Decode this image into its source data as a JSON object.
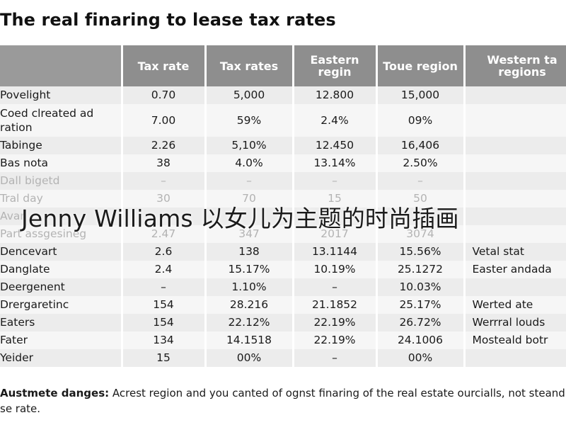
{
  "document": {
    "title": "The real finaring to lease tax rates",
    "overlay_text": "Jenny Williams 以女儿为主题的时尚插画",
    "footnote": {
      "label": "Austmete danges:",
      "text": " Acrest region and you canted of ognst finaring of the real estate ourcialls, not steand se rate."
    }
  },
  "table": {
    "headers": [
      "",
      "Tax rate",
      "Tax rates",
      "Eastern regin",
      "Toue region",
      "Western ta regions"
    ],
    "rows": [
      [
        "Povelight",
        "0.70",
        "5,000",
        "12.800",
        "15,000",
        ""
      ],
      [
        "Coed clreated ad ration",
        "7.00",
        "59%",
        "2.4%",
        "09%",
        ""
      ],
      [
        "Tabinge",
        "2.26",
        "5,10%",
        "12.450",
        "16,406",
        ""
      ],
      [
        "Bas nota",
        "38",
        "4.0%",
        "13.14%",
        "2.50%",
        ""
      ],
      [
        "Dall bigetd",
        "–",
        "–",
        "–",
        "–",
        ""
      ],
      [
        "Tral day",
        "30",
        "70",
        "15",
        "50",
        ""
      ],
      [
        "Avar",
        "",
        "",
        "",
        "",
        ""
      ],
      [
        "Part assgesineg",
        "2.47",
        "347",
        "2017",
        "3074",
        ""
      ],
      [
        "Dencevart",
        "2.6",
        "138",
        "13.1144",
        "15.56%",
        "Vetal stat"
      ],
      [
        "Danglate",
        "2.4",
        "15.17%",
        "10.19%",
        "25.1272",
        "Easter andada"
      ],
      [
        "Deergenent",
        "–",
        "1.10%",
        "–",
        "10.03%",
        ""
      ],
      [
        "Drergaretinc",
        "154",
        "28.216",
        "21.1852",
        "25.17%",
        "Werted ate"
      ],
      [
        "Eaters",
        "154",
        "22.12%",
        "22.19%",
        "26.72%",
        "Werrral louds"
      ],
      [
        "Fater",
        "134",
        "14.1518",
        "22.19%",
        "24.1006",
        "Mosteald botr"
      ],
      [
        "Yeider",
        "15",
        "00%",
        "–",
        "00%",
        ""
      ]
    ]
  }
}
